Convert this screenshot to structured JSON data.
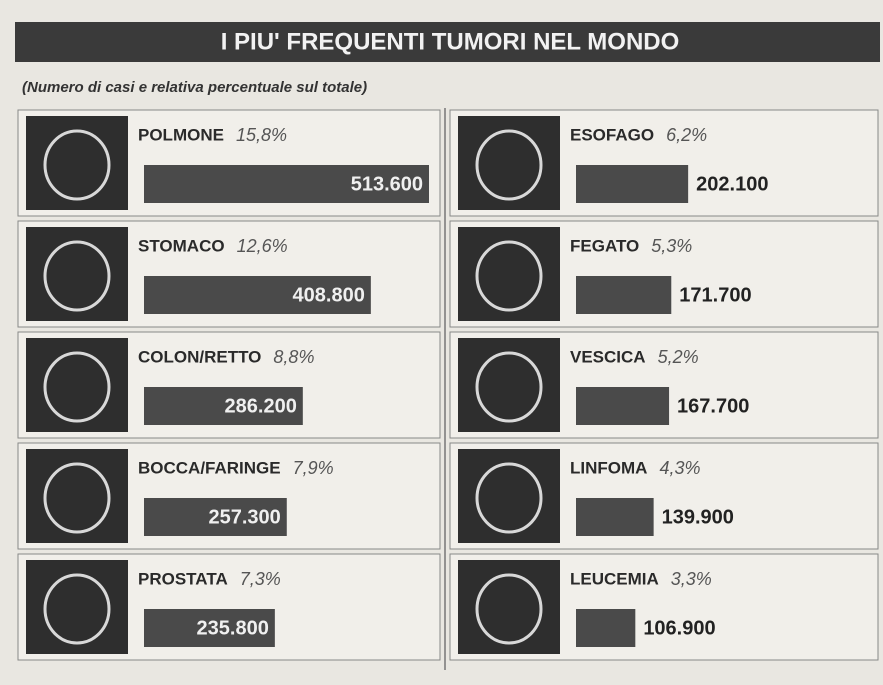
{
  "chart_data": {
    "type": "bar",
    "title": "I PIU' FREQUENTI TUMORI NEL MONDO",
    "subtitle": "(Numero di casi e relativa percentuale sul totale)",
    "categories": [
      "POLMONE",
      "STOMACO",
      "COLON/RETTO",
      "BOCCA/FARINGE",
      "PROSTATA",
      "ESOFAGO",
      "FEGATO",
      "VESCICA",
      "LINFOMA",
      "LEUCEMIA"
    ],
    "values": [
      513600,
      408800,
      286200,
      257300,
      235800,
      202100,
      171700,
      167700,
      139900,
      106900
    ],
    "value_labels": [
      "513.600",
      "408.800",
      "286.200",
      "257.300",
      "235.800",
      "202.100",
      "171.700",
      "167.700",
      "139.900",
      "106.900"
    ],
    "shares": [
      15.8,
      12.6,
      8.8,
      7.9,
      7.3,
      6.2,
      5.3,
      5.2,
      4.3,
      3.3
    ],
    "share_labels": [
      "15,8%",
      "12,6%",
      "8,8%",
      "7,9%",
      "7,3%",
      "6,2%",
      "5,3%",
      "5,2%",
      "4,3%",
      "3,3%"
    ],
    "color": "#4a4a4a"
  }
}
